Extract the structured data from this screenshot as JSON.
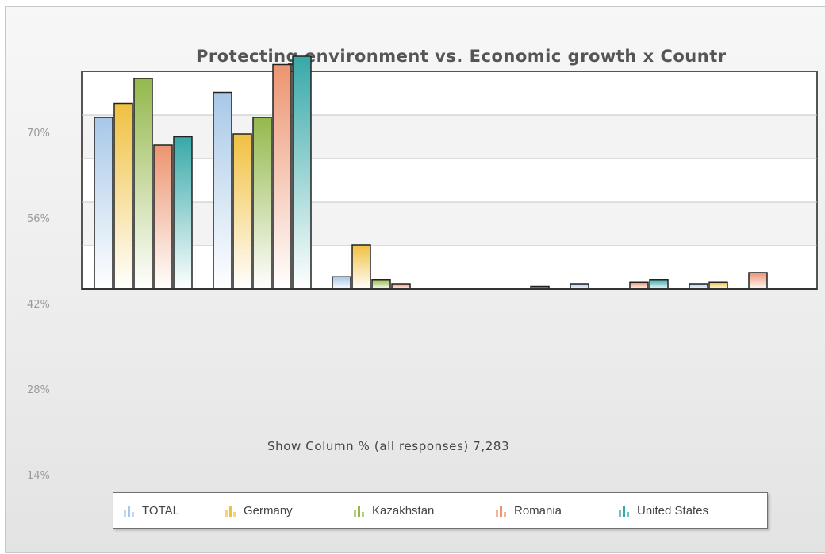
{
  "chart_data": {
    "type": "bar",
    "title": "Protecting environment vs. Economic growth x Countr",
    "subtitle": "Show Column % (all responses) 7,283",
    "yticks": [
      "70%",
      "56%",
      "42%",
      "28%",
      "14%"
    ],
    "series": [
      {
        "name": "TOTAL",
        "color": "#a8c8e8",
        "values": [
          62,
          71,
          4.5,
          0,
          2,
          2
        ]
      },
      {
        "name": "Germany",
        "color": "#f0c040",
        "values": [
          67,
          56,
          16,
          0,
          0,
          2.5
        ]
      },
      {
        "name": "Kazakhstan",
        "color": "#94b84c",
        "values": [
          76,
          62,
          3.5,
          0,
          0,
          0
        ]
      },
      {
        "name": "Romania",
        "color": "#ec9470",
        "values": [
          52,
          81,
          2,
          0,
          2.5,
          6
        ]
      },
      {
        "name": "United States",
        "color": "#38a8a8",
        "values": [
          55,
          84,
          0,
          1,
          3.5,
          0
        ]
      }
    ],
    "categories_count": 6,
    "legend_position": "bottom"
  }
}
